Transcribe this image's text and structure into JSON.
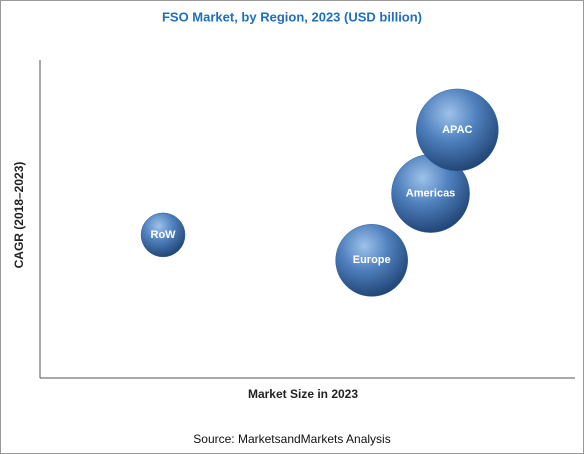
{
  "chart_data": {
    "type": "bubble",
    "title": "FSO Market, by Region, 2023 (USD billion)",
    "x_label": "Market Size in 2023",
    "y_label": "CAGR (2018–2023)",
    "source": "Source: MarketsandMarkets Analysis",
    "categories": [
      "RoW",
      "Europe",
      "Americas",
      "APAC"
    ],
    "x": [
      23,
      62,
      73,
      78
    ],
    "values": [
      45,
      37,
      58,
      78
    ],
    "sizes": [
      22,
      36,
      39,
      41
    ],
    "xlim": [
      0,
      100
    ],
    "ylim": [
      0,
      100
    ],
    "color": "#2f5f9e"
  }
}
